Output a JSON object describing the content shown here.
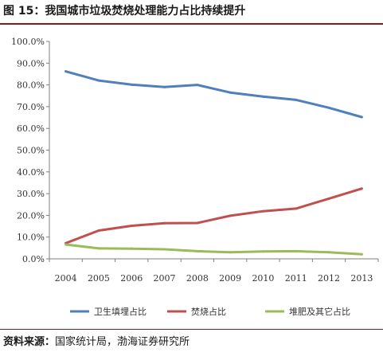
{
  "figure": {
    "title": "图 15：我国城市垃圾焚烧处理能力占比持续提升",
    "source_lead": "资料来源：",
    "source_text": "国家统计局，渤海证券研究所"
  },
  "chart_data": {
    "type": "line",
    "title": "",
    "xlabel": "",
    "ylabel": "",
    "categories": [
      "2004",
      "2005",
      "2006",
      "2007",
      "2008",
      "2009",
      "2010",
      "2011",
      "2012",
      "2013"
    ],
    "ylim": [
      0,
      100
    ],
    "yticks": [
      "0.0%",
      "10.0%",
      "20.0%",
      "30.0%",
      "40.0%",
      "50.0%",
      "60.0%",
      "70.0%",
      "80.0%",
      "90.0%",
      "100.0%"
    ],
    "grid": false,
    "legend_position": "bottom",
    "series": [
      {
        "name": "卫生填埋占比",
        "color": "#4f7fbd",
        "values": [
          86.2,
          82.0,
          80.1,
          79.0,
          80.0,
          76.5,
          74.6,
          73.1,
          69.5,
          65.2
        ]
      },
      {
        "name": "焚烧占比",
        "color": "#c0504d",
        "values": [
          7.2,
          13.0,
          15.2,
          16.4,
          16.5,
          19.8,
          21.9,
          23.1,
          27.7,
          32.3
        ]
      },
      {
        "name": "堆肥及其它占比",
        "color": "#9bbb59",
        "values": [
          6.6,
          4.8,
          4.7,
          4.4,
          3.5,
          3.0,
          3.4,
          3.5,
          3.0,
          2.1
        ]
      }
    ]
  }
}
